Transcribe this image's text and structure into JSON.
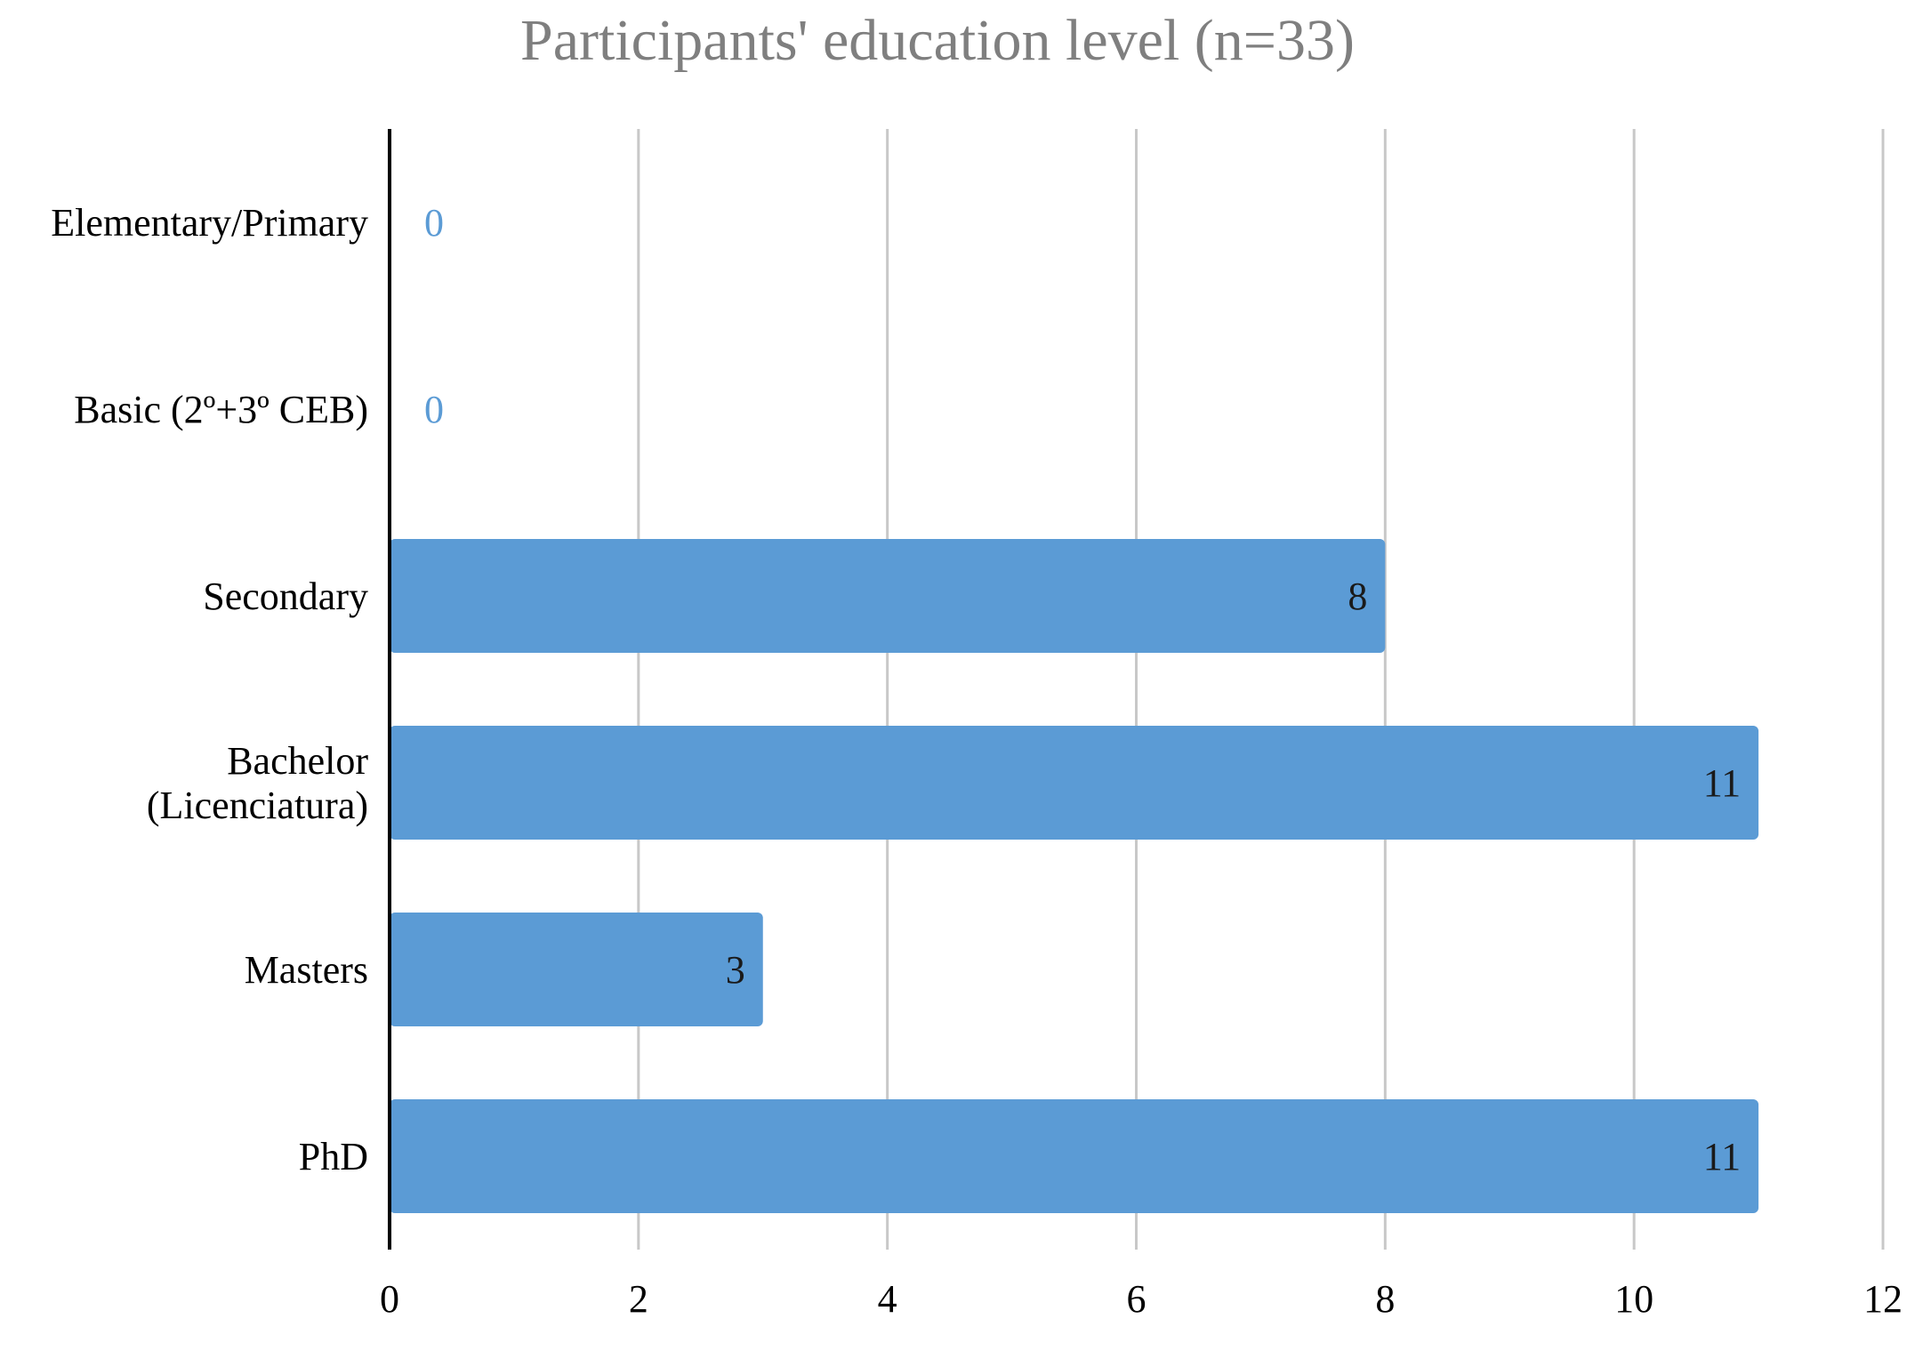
{
  "chart_data": {
    "type": "bar",
    "orientation": "horizontal",
    "title": "Participants' education level (n=33)",
    "xlabel": "",
    "ylabel": "",
    "categories": [
      "Elementary/Primary",
      "Basic (2º+3º CEB)",
      "Secondary",
      "Bachelor (Licenciatura)",
      "Masters",
      "PhD"
    ],
    "category_label_lines": [
      [
        "Elementary/Primary"
      ],
      [
        "Basic (2º+3º CEB)"
      ],
      [
        "Secondary"
      ],
      [
        "Bachelor",
        "(Licenciatura)"
      ],
      [
        "Masters"
      ],
      [
        "PhD"
      ]
    ],
    "values": [
      0,
      0,
      8,
      11,
      3,
      11
    ],
    "data_labels": [
      "0",
      "0",
      "8",
      "11",
      "3",
      "11"
    ],
    "xlim": [
      0,
      12
    ],
    "x_ticks": [
      0,
      2,
      4,
      6,
      8,
      10,
      12
    ],
    "x_tick_labels": [
      "0",
      "2",
      "4",
      "6",
      "8",
      "10",
      "12"
    ],
    "grid": "vertical",
    "legend": "none",
    "colors": {
      "bar": "#5b9bd5",
      "zero_label": "#5b9bd5",
      "value_label": "#1a1a1a",
      "title": "#7f7f7f",
      "gridline": "#c8c8c8",
      "axis": "#000000",
      "text": "#000000"
    }
  }
}
